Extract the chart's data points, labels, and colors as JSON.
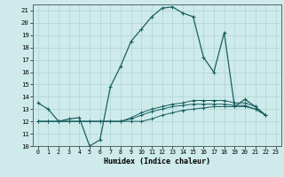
{
  "xlabel": "Humidex (Indice chaleur)",
  "background_color": "#ceeaea",
  "grid_color": "#aed4d4",
  "line_color": "#1a6060",
  "xlim": [
    -0.5,
    23.5
  ],
  "ylim": [
    10,
    21.5
  ],
  "xticks": [
    0,
    1,
    2,
    3,
    4,
    5,
    6,
    7,
    8,
    9,
    10,
    11,
    12,
    13,
    14,
    15,
    16,
    17,
    18,
    19,
    20,
    21,
    22,
    23
  ],
  "yticks": [
    10,
    11,
    12,
    13,
    14,
    15,
    16,
    17,
    18,
    19,
    20,
    21
  ],
  "series": [
    [
      13.5,
      13.0,
      12.0,
      12.2,
      12.3,
      10.0,
      10.5,
      14.8,
      16.5,
      18.5,
      19.5,
      20.5,
      21.2,
      21.3,
      20.8,
      20.5,
      17.2,
      16.0,
      19.2,
      13.2,
      13.8,
      13.2,
      12.5
    ],
    [
      12.0,
      12.0,
      12.0,
      12.0,
      12.0,
      12.0,
      12.0,
      12.0,
      12.0,
      12.0,
      12.0,
      12.2,
      12.5,
      12.7,
      12.9,
      13.0,
      13.1,
      13.2,
      13.2,
      13.2,
      13.2,
      13.0,
      12.5
    ],
    [
      12.0,
      12.0,
      12.0,
      12.0,
      12.0,
      12.0,
      12.0,
      12.0,
      12.0,
      12.2,
      12.5,
      12.8,
      13.0,
      13.2,
      13.3,
      13.4,
      13.4,
      13.4,
      13.4,
      13.3,
      13.3,
      13.0,
      12.5
    ],
    [
      12.0,
      12.0,
      12.0,
      12.0,
      12.0,
      12.0,
      12.0,
      12.0,
      12.0,
      12.3,
      12.7,
      13.0,
      13.2,
      13.4,
      13.5,
      13.7,
      13.7,
      13.7,
      13.7,
      13.5,
      13.5,
      13.2,
      12.5
    ]
  ]
}
